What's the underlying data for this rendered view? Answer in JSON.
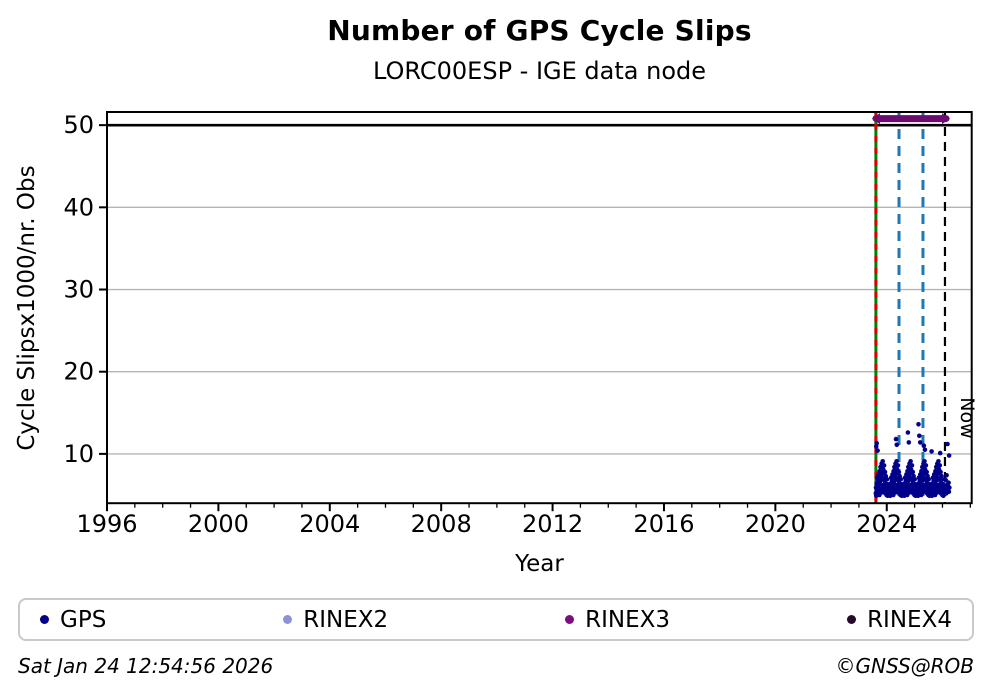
{
  "header": {
    "title": "Number of GPS Cycle Slips",
    "subtitle": "LORC00ESP - IGE data node"
  },
  "footer": {
    "timestamp": "Sat Jan 24 12:54:56 2026",
    "copyright": "©GNSS@ROB"
  },
  "chart_data": {
    "type": "scatter",
    "title": "Number of GPS Cycle Slips",
    "subtitle": "LORC00ESP - IGE data node",
    "xlabel": "Year",
    "ylabel": "Cycle Slipsx1000/nr. Obs",
    "xlim": [
      1996,
      2027.05
    ],
    "ylim": [
      4.0,
      51.6
    ],
    "x_major_ticks": [
      1996,
      2000,
      2004,
      2008,
      2012,
      2016,
      2020,
      2024
    ],
    "x_minor_step": 1,
    "y_ticks": [
      10,
      20,
      30,
      40,
      50
    ],
    "grid": "horizontal",
    "grid_color": "#b5b5b5",
    "cap_line": {
      "y": 50,
      "color": "#000000"
    },
    "now_label": "Now",
    "vlines": [
      {
        "x": 2023.61,
        "style": "solid",
        "dash": "",
        "color": "#008000",
        "width": 3,
        "name": "station-data-start-line"
      },
      {
        "x": 2023.61,
        "style": "dashed",
        "dash": "6 6",
        "color": "#dd0000",
        "width": 3,
        "name": "rinex3-start-line"
      },
      {
        "x": 2024.44,
        "style": "dashed",
        "dash": "10 7",
        "color": "#1f77b4",
        "width": 3,
        "name": "event-line-1"
      },
      {
        "x": 2025.3,
        "style": "dashed",
        "dash": "10 7",
        "color": "#1f77b4",
        "width": 3,
        "name": "event-line-2"
      },
      {
        "x": 2026.09,
        "style": "dashed",
        "dash": "9 6",
        "color": "#000000",
        "width": 2.2,
        "label": "Now",
        "name": "now-line"
      }
    ],
    "span_arrow": {
      "x_start": 2023.47,
      "x_end": 2026.27,
      "y": 50.8,
      "color": "#6e0b6e",
      "series": "RINEX3"
    },
    "series": [
      {
        "name": "GPS",
        "color": "#00008b",
        "marker": "dot",
        "hump_centers": [
          2023.85,
          2024.35,
          2024.85,
          2025.35,
          2025.85
        ],
        "hump_profile": [
          [
            -0.245,
            5.2
          ],
          [
            -0.235,
            5.9
          ],
          [
            -0.225,
            4.9
          ],
          [
            -0.215,
            6.4
          ],
          [
            -0.205,
            5.5
          ],
          [
            -0.195,
            7.1
          ],
          [
            -0.185,
            5.1
          ],
          [
            -0.175,
            6.0
          ],
          [
            -0.165,
            6.8
          ],
          [
            -0.155,
            5.4
          ],
          [
            -0.145,
            7.5
          ],
          [
            -0.135,
            5.8
          ],
          [
            -0.125,
            6.3
          ],
          [
            -0.115,
            5.0
          ],
          [
            -0.105,
            7.9
          ],
          [
            -0.095,
            6.6
          ],
          [
            -0.085,
            5.6
          ],
          [
            -0.075,
            8.4
          ],
          [
            -0.065,
            6.1
          ],
          [
            -0.055,
            7.2
          ],
          [
            -0.045,
            5.3
          ],
          [
            -0.035,
            8.8
          ],
          [
            -0.025,
            6.9
          ],
          [
            -0.015,
            5.7
          ],
          [
            -0.005,
            7.6
          ],
          [
            0.005,
            9.1
          ],
          [
            0.015,
            6.2
          ],
          [
            0.025,
            8.1
          ],
          [
            0.035,
            5.5
          ],
          [
            0.045,
            7.0
          ],
          [
            0.055,
            8.6
          ],
          [
            0.065,
            5.9
          ],
          [
            0.075,
            6.7
          ],
          [
            0.085,
            7.8
          ],
          [
            0.095,
            5.2
          ],
          [
            0.105,
            6.4
          ],
          [
            0.115,
            7.3
          ],
          [
            0.125,
            5.6
          ],
          [
            0.135,
            6.1
          ],
          [
            0.145,
            5.0
          ],
          [
            0.155,
            6.9
          ],
          [
            0.165,
            5.4
          ],
          [
            0.175,
            6.3
          ],
          [
            0.185,
            4.9
          ],
          [
            0.195,
            5.8
          ],
          [
            0.205,
            5.3
          ],
          [
            0.215,
            6.0
          ],
          [
            0.225,
            5.1
          ],
          [
            0.235,
            5.6
          ],
          [
            0.245,
            5.3
          ]
        ],
        "extra_points": [
          [
            2026.11,
            5.5
          ],
          [
            2026.12,
            6.8
          ],
          [
            2026.14,
            5.2
          ],
          [
            2026.15,
            7.4
          ],
          [
            2026.16,
            6.2
          ],
          [
            2026.18,
            11.2
          ],
          [
            2026.19,
            6.1
          ],
          [
            2026.2,
            5.7
          ],
          [
            2026.22,
            6.5
          ],
          [
            2026.23,
            5.4
          ],
          [
            2026.24,
            9.8
          ],
          [
            2026.25,
            5.9
          ],
          [
            2023.62,
            10.9
          ],
          [
            2023.64,
            11.3
          ],
          [
            2023.67,
            10.4
          ],
          [
            2024.33,
            11.8
          ],
          [
            2024.36,
            11.1
          ],
          [
            2024.76,
            12.6
          ],
          [
            2024.79,
            11.4
          ],
          [
            2025.14,
            13.6
          ],
          [
            2025.17,
            12.2
          ],
          [
            2025.2,
            11.4
          ],
          [
            2025.33,
            11.0
          ],
          [
            2025.37,
            10.5
          ],
          [
            2025.61,
            10.3
          ],
          [
            2025.92,
            10.1
          ]
        ]
      }
    ],
    "legend": {
      "items": [
        {
          "label": "GPS",
          "color": "#00008b"
        },
        {
          "label": "RINEX2",
          "color": "#9090d8"
        },
        {
          "label": "RINEX3",
          "color": "#7c0d7c"
        },
        {
          "label": "RINEX4",
          "color": "#26082b"
        }
      ]
    }
  }
}
